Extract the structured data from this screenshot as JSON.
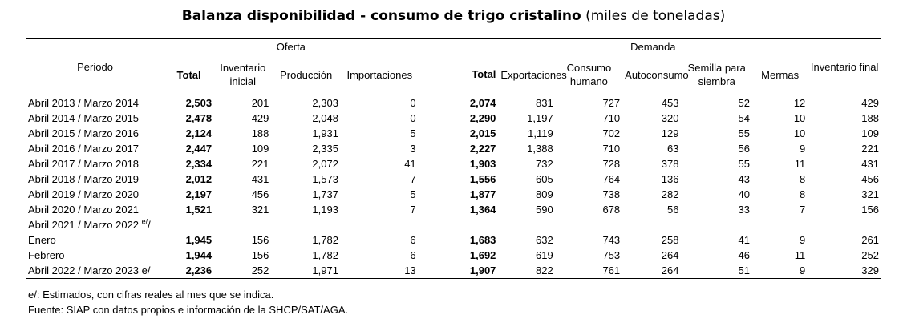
{
  "title": {
    "bold": "Balanza disponibilidad - consumo de trigo cristalino",
    "units": "(miles de toneladas)"
  },
  "headers": {
    "periodo": "Periodo",
    "oferta": "Oferta",
    "demanda": "Demanda",
    "inventario_final": "Inventario final",
    "oferta_cols": [
      "Total",
      "Inventario inicial",
      "Producción",
      "Importaciones"
    ],
    "demanda_cols": [
      "Total",
      "Exportaciones",
      "Consumo humano",
      "Autoconsumo",
      "Semilla para siembra",
      "Mermas"
    ]
  },
  "rows": [
    {
      "period": "Abril 2013 / Marzo 2014",
      "values": [
        "2,503",
        "201",
        "2,303",
        "0",
        "2,074",
        "831",
        "727",
        "453",
        "52",
        "12",
        "429"
      ]
    },
    {
      "period": "Abril 2014 / Marzo 2015",
      "values": [
        "2,478",
        "429",
        "2,048",
        "0",
        "2,290",
        "1,197",
        "710",
        "320",
        "54",
        "10",
        "188"
      ]
    },
    {
      "period": "Abril 2015 / Marzo 2016",
      "values": [
        "2,124",
        "188",
        "1,931",
        "5",
        "2,015",
        "1,119",
        "702",
        "129",
        "55",
        "10",
        "109"
      ]
    },
    {
      "period": "Abril 2016 / Marzo 2017",
      "values": [
        "2,447",
        "109",
        "2,335",
        "3",
        "2,227",
        "1,388",
        "710",
        "63",
        "56",
        "9",
        "221"
      ]
    },
    {
      "period": "Abril 2017 / Marzo 2018",
      "values": [
        "2,334",
        "221",
        "2,072",
        "41",
        "1,903",
        "732",
        "728",
        "378",
        "55",
        "11",
        "431"
      ]
    },
    {
      "period": "Abril 2018 / Marzo 2019",
      "values": [
        "2,012",
        "431",
        "1,573",
        "7",
        "1,556",
        "605",
        "764",
        "136",
        "43",
        "8",
        "456"
      ]
    },
    {
      "period": "Abril 2019 / Marzo 2020",
      "values": [
        "2,197",
        "456",
        "1,737",
        "5",
        "1,877",
        "809",
        "738",
        "282",
        "40",
        "8",
        "321"
      ]
    },
    {
      "period": "Abril 2020 / Marzo 2021",
      "values": [
        "1,521",
        "321",
        "1,193",
        "7",
        "1,364",
        "590",
        "678",
        "56",
        "33",
        "7",
        "156"
      ]
    },
    {
      "period": "Abril 2021 / Marzo 2022",
      "sup": "e/",
      "suffix": "/",
      "values": [
        "",
        "",
        "",
        "",
        "",
        "",
        "",
        "",
        "",
        "",
        ""
      ]
    },
    {
      "period": "Enero",
      "values": [
        "1,945",
        "156",
        "1,782",
        "6",
        "1,683",
        "632",
        "743",
        "258",
        "41",
        "9",
        "261"
      ]
    },
    {
      "period": "Febrero",
      "values": [
        "1,944",
        "156",
        "1,782",
        "6",
        "1,692",
        "619",
        "753",
        "264",
        "46",
        "11",
        "252"
      ]
    },
    {
      "period": "Abril 2022 / Marzo 2023 e/",
      "values": [
        "2,236",
        "252",
        "1,971",
        "13",
        "1,907",
        "822",
        "761",
        "264",
        "51",
        "9",
        "329"
      ]
    }
  ],
  "notes": {
    "estimate": "e/: Estimados, con cifras reales al mes que se indica.",
    "source": "Fuente: SIAP con datos propios e información de la SHCP/SAT/AGA."
  }
}
